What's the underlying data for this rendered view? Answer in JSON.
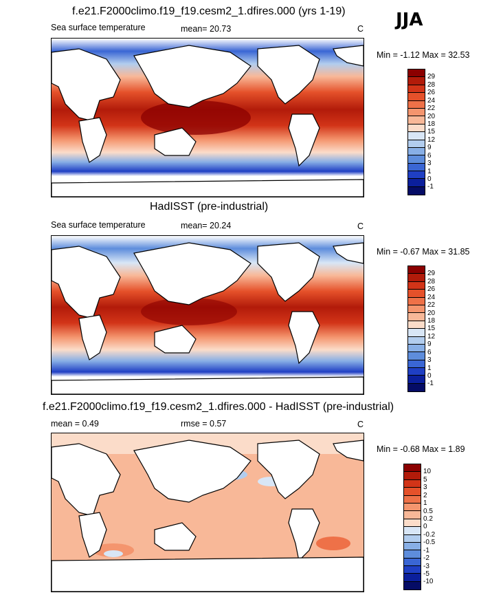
{
  "season": "JJA",
  "panels": [
    {
      "title": "f.e21.F2000climo.f19_f19.cesm2_1.dfires.000 (yrs 1-19)",
      "left": "Sea surface temperature",
      "center": "mean=  20.73",
      "unit": "C",
      "minmax": "Min =  -1.12 Max =  32.53",
      "levels": [
        "29",
        "28",
        "26",
        "24",
        "22",
        "20",
        "18",
        "15",
        "12",
        "9",
        "6",
        "3",
        "1",
        "0",
        "-1"
      ],
      "colors": [
        "#8b0000",
        "#b21b0a",
        "#d23418",
        "#e5512a",
        "#ee7148",
        "#f4956e",
        "#f8b898",
        "#fbdcc9",
        "#d8e6f6",
        "#b2cdee",
        "#88afe6",
        "#5e8ddc",
        "#3a66d4",
        "#1f3fc4",
        "#0b1f9c",
        "#050c66"
      ]
    },
    {
      "title": "HadISST (pre-industrial)",
      "left": "Sea surface temperature",
      "center": "mean=  20.24",
      "unit": "C",
      "minmax": "Min =  -0.67 Max =  31.85",
      "levels": [
        "29",
        "28",
        "26",
        "24",
        "22",
        "20",
        "18",
        "15",
        "12",
        "9",
        "6",
        "3",
        "1",
        "0",
        "-1"
      ],
      "colors": [
        "#8b0000",
        "#b21b0a",
        "#d23418",
        "#e5512a",
        "#ee7148",
        "#f4956e",
        "#f8b898",
        "#fbdcc9",
        "#d8e6f6",
        "#b2cdee",
        "#88afe6",
        "#5e8ddc",
        "#3a66d4",
        "#1f3fc4",
        "#0b1f9c",
        "#050c66"
      ]
    },
    {
      "title": "f.e21.F2000climo.f19_f19.cesm2_1.dfires.000 - HadISST (pre-industrial)",
      "left": "mean =   0.49",
      "center": "rmse =   0.57",
      "unit": "C",
      "minmax": "Min =  -0.68 Max =   1.89",
      "levels": [
        "10",
        "5",
        "3",
        "2",
        "1",
        "0.5",
        "0.2",
        "0",
        "-0.2",
        "-0.5",
        "-1",
        "-2",
        "-3",
        "-5",
        "-10"
      ],
      "colors": [
        "#8b0000",
        "#b21b0a",
        "#d23418",
        "#e5512a",
        "#ee7148",
        "#f4956e",
        "#f8b898",
        "#fbdcc9",
        "#d8e6f6",
        "#b2cdee",
        "#88afe6",
        "#5e8ddc",
        "#3a66d4",
        "#1f3fc4",
        "#0b1f9c",
        "#050c66"
      ]
    }
  ]
}
